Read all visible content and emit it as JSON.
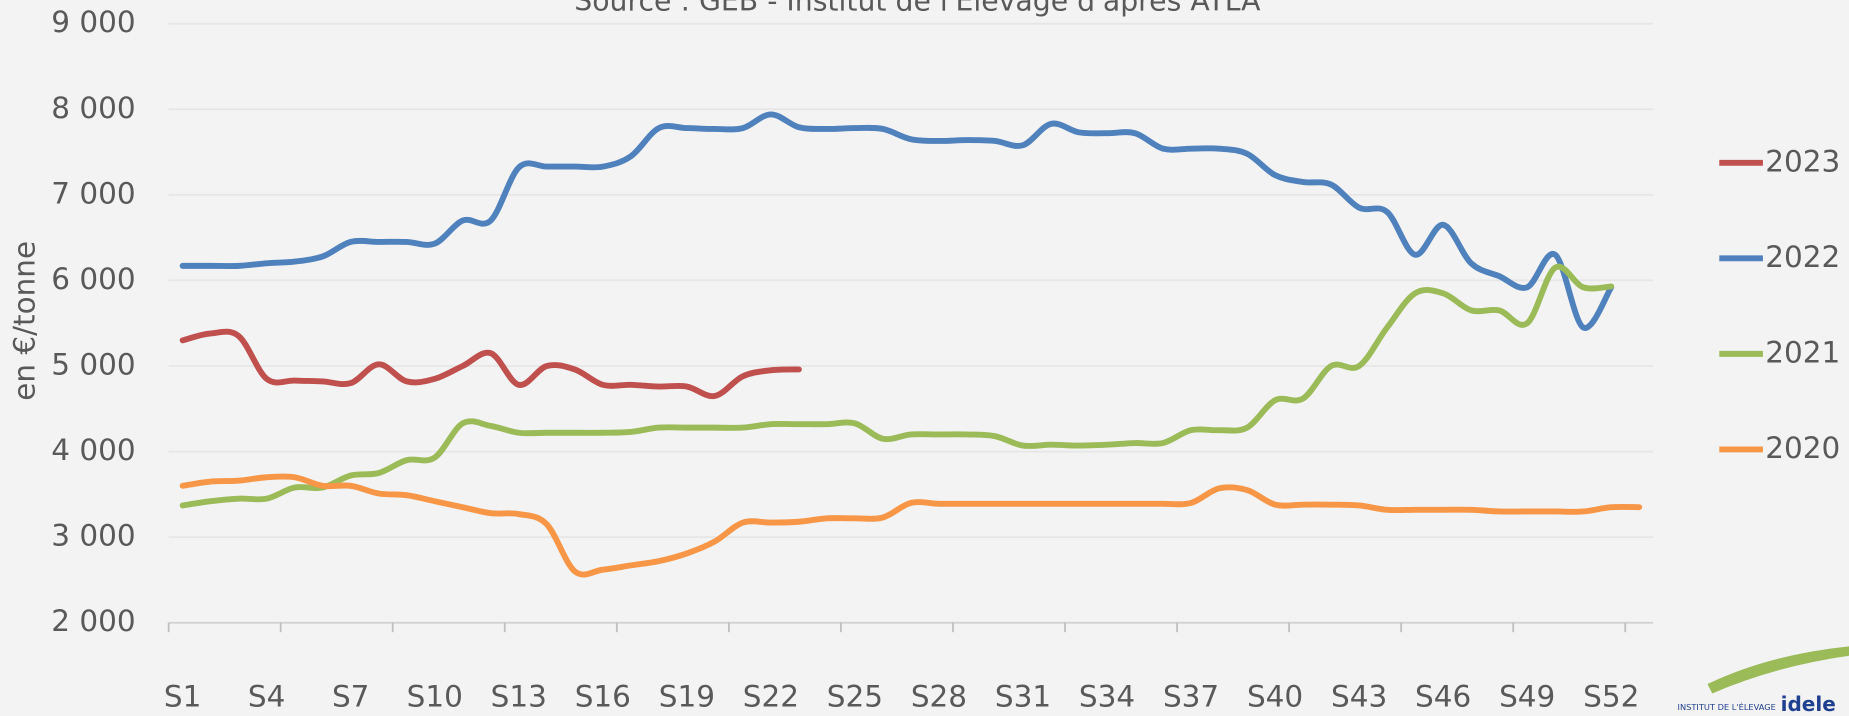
{
  "chart_data": {
    "type": "line",
    "subtitle": "Source : GEB - Institut de l'Elevage d'après ATLA",
    "y_label": "en €/tonne",
    "categories": [
      "S1",
      null,
      null,
      "S4",
      null,
      null,
      "S7",
      null,
      null,
      "S10",
      null,
      null,
      "S13",
      null,
      null,
      "S16",
      null,
      null,
      "S19",
      null,
      null,
      "S22",
      null,
      null,
      "S25",
      null,
      null,
      "S28",
      null,
      null,
      "S31",
      null,
      null,
      "S34",
      null,
      null,
      "S37",
      null,
      null,
      "S40",
      null,
      null,
      "S43",
      null,
      null,
      "S46",
      null,
      null,
      "S49",
      null,
      null,
      "S52",
      null
    ],
    "ylim": [
      2000,
      9000
    ],
    "yticks": [
      {
        "value": 2000,
        "label": "2 000"
      },
      {
        "value": 3000,
        "label": "3 000"
      },
      {
        "value": 4000,
        "label": "4 000"
      },
      {
        "value": 5000,
        "label": "5 000"
      },
      {
        "value": 6000,
        "label": "6 000"
      },
      {
        "value": 7000,
        "label": "7 000"
      },
      {
        "value": 8000,
        "label": "8 000"
      },
      {
        "value": 9000,
        "label": "9 000"
      }
    ],
    "grid": true,
    "legend": "right",
    "series": [
      {
        "name": "2023",
        "color": "#c0504d",
        "values": [
          5300,
          5380,
          5350,
          4850,
          4830,
          4820,
          4800,
          5020,
          4820,
          4850,
          5000,
          5150,
          4780,
          5000,
          4960,
          4780,
          4780,
          4760,
          4760,
          4650,
          4880,
          4950,
          4960,
          null,
          null,
          null,
          null,
          null,
          null,
          null,
          null,
          null,
          null,
          null,
          null,
          null,
          null,
          null,
          null,
          null,
          null,
          null,
          null,
          null,
          null,
          null,
          null,
          null,
          null,
          null,
          null,
          null,
          null
        ]
      },
      {
        "name": "2022",
        "color": "#4f81bd",
        "values": [
          6170,
          6170,
          6170,
          6200,
          6220,
          6280,
          6450,
          6450,
          6450,
          6430,
          6700,
          6700,
          7320,
          7330,
          7330,
          7330,
          7450,
          7780,
          7780,
          7770,
          7780,
          7940,
          7790,
          7770,
          7780,
          7770,
          7650,
          7630,
          7640,
          7630,
          7580,
          7830,
          7730,
          7720,
          7720,
          7540,
          7540,
          7540,
          7480,
          7230,
          7150,
          7120,
          6850,
          6800,
          6300,
          6650,
          6200,
          6050,
          5920,
          6300,
          5450,
          5920,
          null
        ]
      },
      {
        "name": "2021",
        "color": "#9bbb59",
        "values": [
          3370,
          3420,
          3450,
          3450,
          3580,
          3580,
          3720,
          3750,
          3900,
          3930,
          4330,
          4300,
          4220,
          4220,
          4220,
          4220,
          4230,
          4280,
          4280,
          4280,
          4280,
          4320,
          4320,
          4320,
          4330,
          4150,
          4200,
          4200,
          4200,
          4180,
          4070,
          4080,
          4070,
          4080,
          4100,
          4100,
          4250,
          4250,
          4280,
          4600,
          4620,
          5000,
          5000,
          5450,
          5850,
          5850,
          5650,
          5650,
          5500,
          6150,
          5920,
          5930,
          null
        ]
      },
      {
        "name": "2020",
        "color": "#f79646",
        "values": [
          3600,
          3650,
          3660,
          3700,
          3700,
          3600,
          3600,
          3510,
          3490,
          3420,
          3350,
          3280,
          3270,
          3150,
          2600,
          2620,
          2670,
          2720,
          2810,
          2950,
          3170,
          3170,
          3180,
          3220,
          3220,
          3230,
          3400,
          3390,
          3390,
          3390,
          3390,
          3390,
          3390,
          3390,
          3390,
          3390,
          3400,
          3570,
          3550,
          3380,
          3380,
          3380,
          3370,
          3320,
          3320,
          3320,
          3320,
          3300,
          3300,
          3300,
          3300,
          3350,
          3350
        ]
      }
    ],
    "logo": {
      "small": "INSTITUT DE L'ÉLEVAGE",
      "big": "idele"
    }
  }
}
